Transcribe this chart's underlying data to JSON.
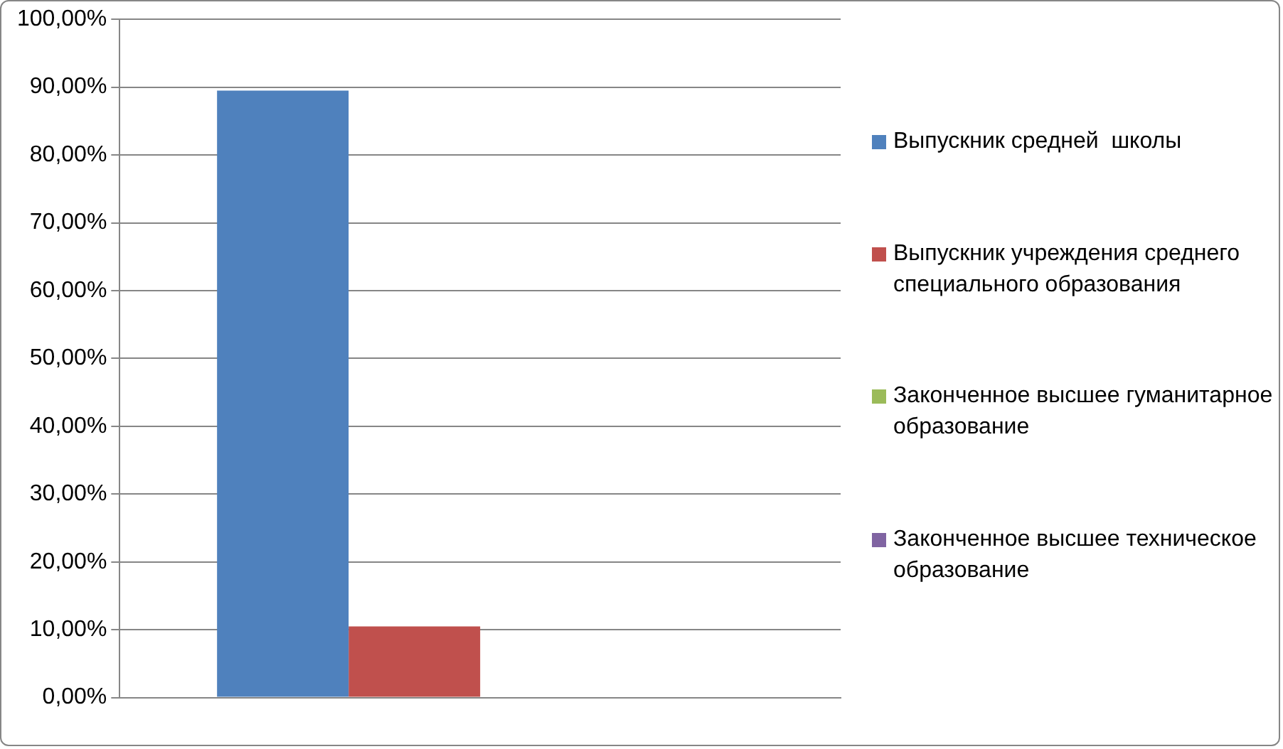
{
  "chart_data": {
    "type": "bar",
    "categories": [
      null
    ],
    "series": [
      {
        "name": "Выпускник средней  школы",
        "color": "#4f81bd",
        "values": [
          89.5
        ]
      },
      {
        "name": "Выпускник учреждения среднего специального образования",
        "color": "#c0504d",
        "values": [
          10.5
        ]
      },
      {
        "name": "Законченное высшее гуманитарное образование",
        "color": "#9bbb59",
        "values": [
          0
        ]
      },
      {
        "name": "Законченное высшее техническое образование",
        "color": "#8064a2",
        "values": [
          0
        ]
      }
    ],
    "ylim": [
      0,
      100
    ],
    "yticks": [
      {
        "value": 0,
        "label": "0,00%"
      },
      {
        "value": 10,
        "label": "10,00%"
      },
      {
        "value": 20,
        "label": "20,00%"
      },
      {
        "value": 30,
        "label": "30,00%"
      },
      {
        "value": 40,
        "label": "40,00%"
      },
      {
        "value": 50,
        "label": "50,00%"
      },
      {
        "value": 60,
        "label": "60,00%"
      },
      {
        "value": 70,
        "label": "70,00%"
      },
      {
        "value": 80,
        "label": "80,00%"
      },
      {
        "value": 90,
        "label": "90,00%"
      },
      {
        "value": 100,
        "label": "100,00%"
      }
    ],
    "grid": "y",
    "legend": "right"
  }
}
